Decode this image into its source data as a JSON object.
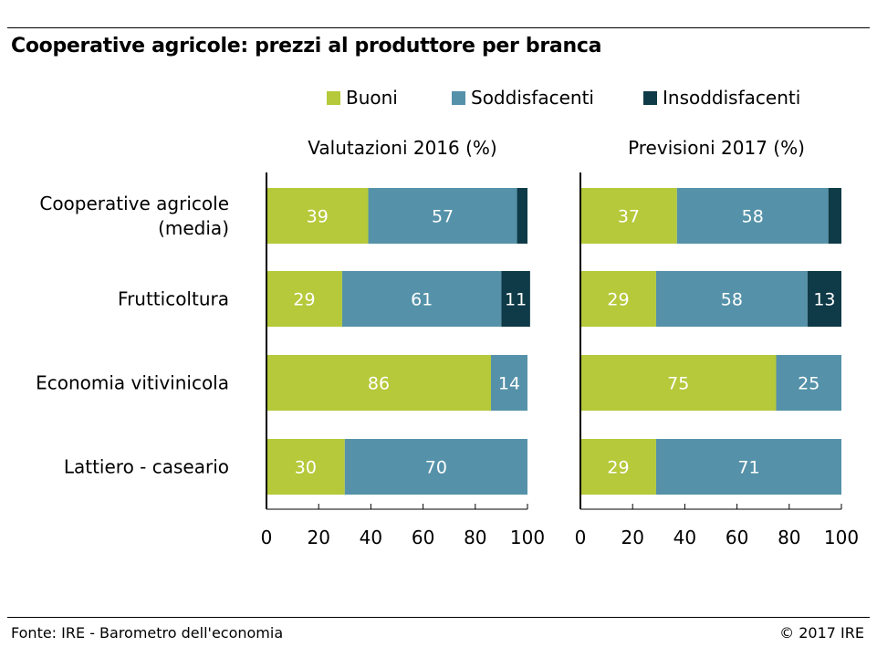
{
  "title": "Cooperative agricole: prezzi al produttore per branca",
  "source": "Fonte: IRE - Barometro dell'economia",
  "copyright": "© 2017 IRE",
  "colors": {
    "Buoni": "#b5c93a",
    "Soddisfacenti": "#5592a9",
    "Insoddisfacenti": "#0f3a47"
  },
  "chart_data": [
    {
      "type": "bar",
      "orientation": "horizontal",
      "stacked": true,
      "title": "Valutazioni 2016 (%)",
      "categories": [
        "Cooperative agricole (media)",
        "Frutticoltura",
        "Economia vitivinicola",
        "Lattiero - caseario"
      ],
      "series": [
        {
          "name": "Buoni",
          "values": [
            39,
            29,
            86,
            30
          ]
        },
        {
          "name": "Soddisfacenti",
          "values": [
            57,
            61,
            14,
            70
          ]
        },
        {
          "name": "Insoddisfacenti",
          "values": [
            4,
            11,
            0,
            0
          ]
        }
      ],
      "xlim": [
        0,
        100
      ],
      "xticks": [
        0,
        20,
        40,
        60,
        80,
        100
      ],
      "legend": "top"
    },
    {
      "type": "bar",
      "orientation": "horizontal",
      "stacked": true,
      "title": "Previsioni 2017 (%)",
      "categories": [
        "Cooperative agricole (media)",
        "Frutticoltura",
        "Economia vitivinicola",
        "Lattiero - caseario"
      ],
      "series": [
        {
          "name": "Buoni",
          "values": [
            37,
            29,
            75,
            29
          ]
        },
        {
          "name": "Soddisfacenti",
          "values": [
            58,
            58,
            25,
            71
          ]
        },
        {
          "name": "Insoddisfacenti",
          "values": [
            5,
            13,
            0,
            0
          ]
        }
      ],
      "xlim": [
        0,
        100
      ],
      "xticks": [
        0,
        20,
        40,
        60,
        80,
        100
      ],
      "legend": "top"
    }
  ],
  "category_labels": [
    [
      "Cooperative agricole",
      "(media)"
    ],
    [
      "Frutticoltura"
    ],
    [
      "Economia vitivinicola"
    ],
    [
      "Lattiero - caseario"
    ]
  ]
}
